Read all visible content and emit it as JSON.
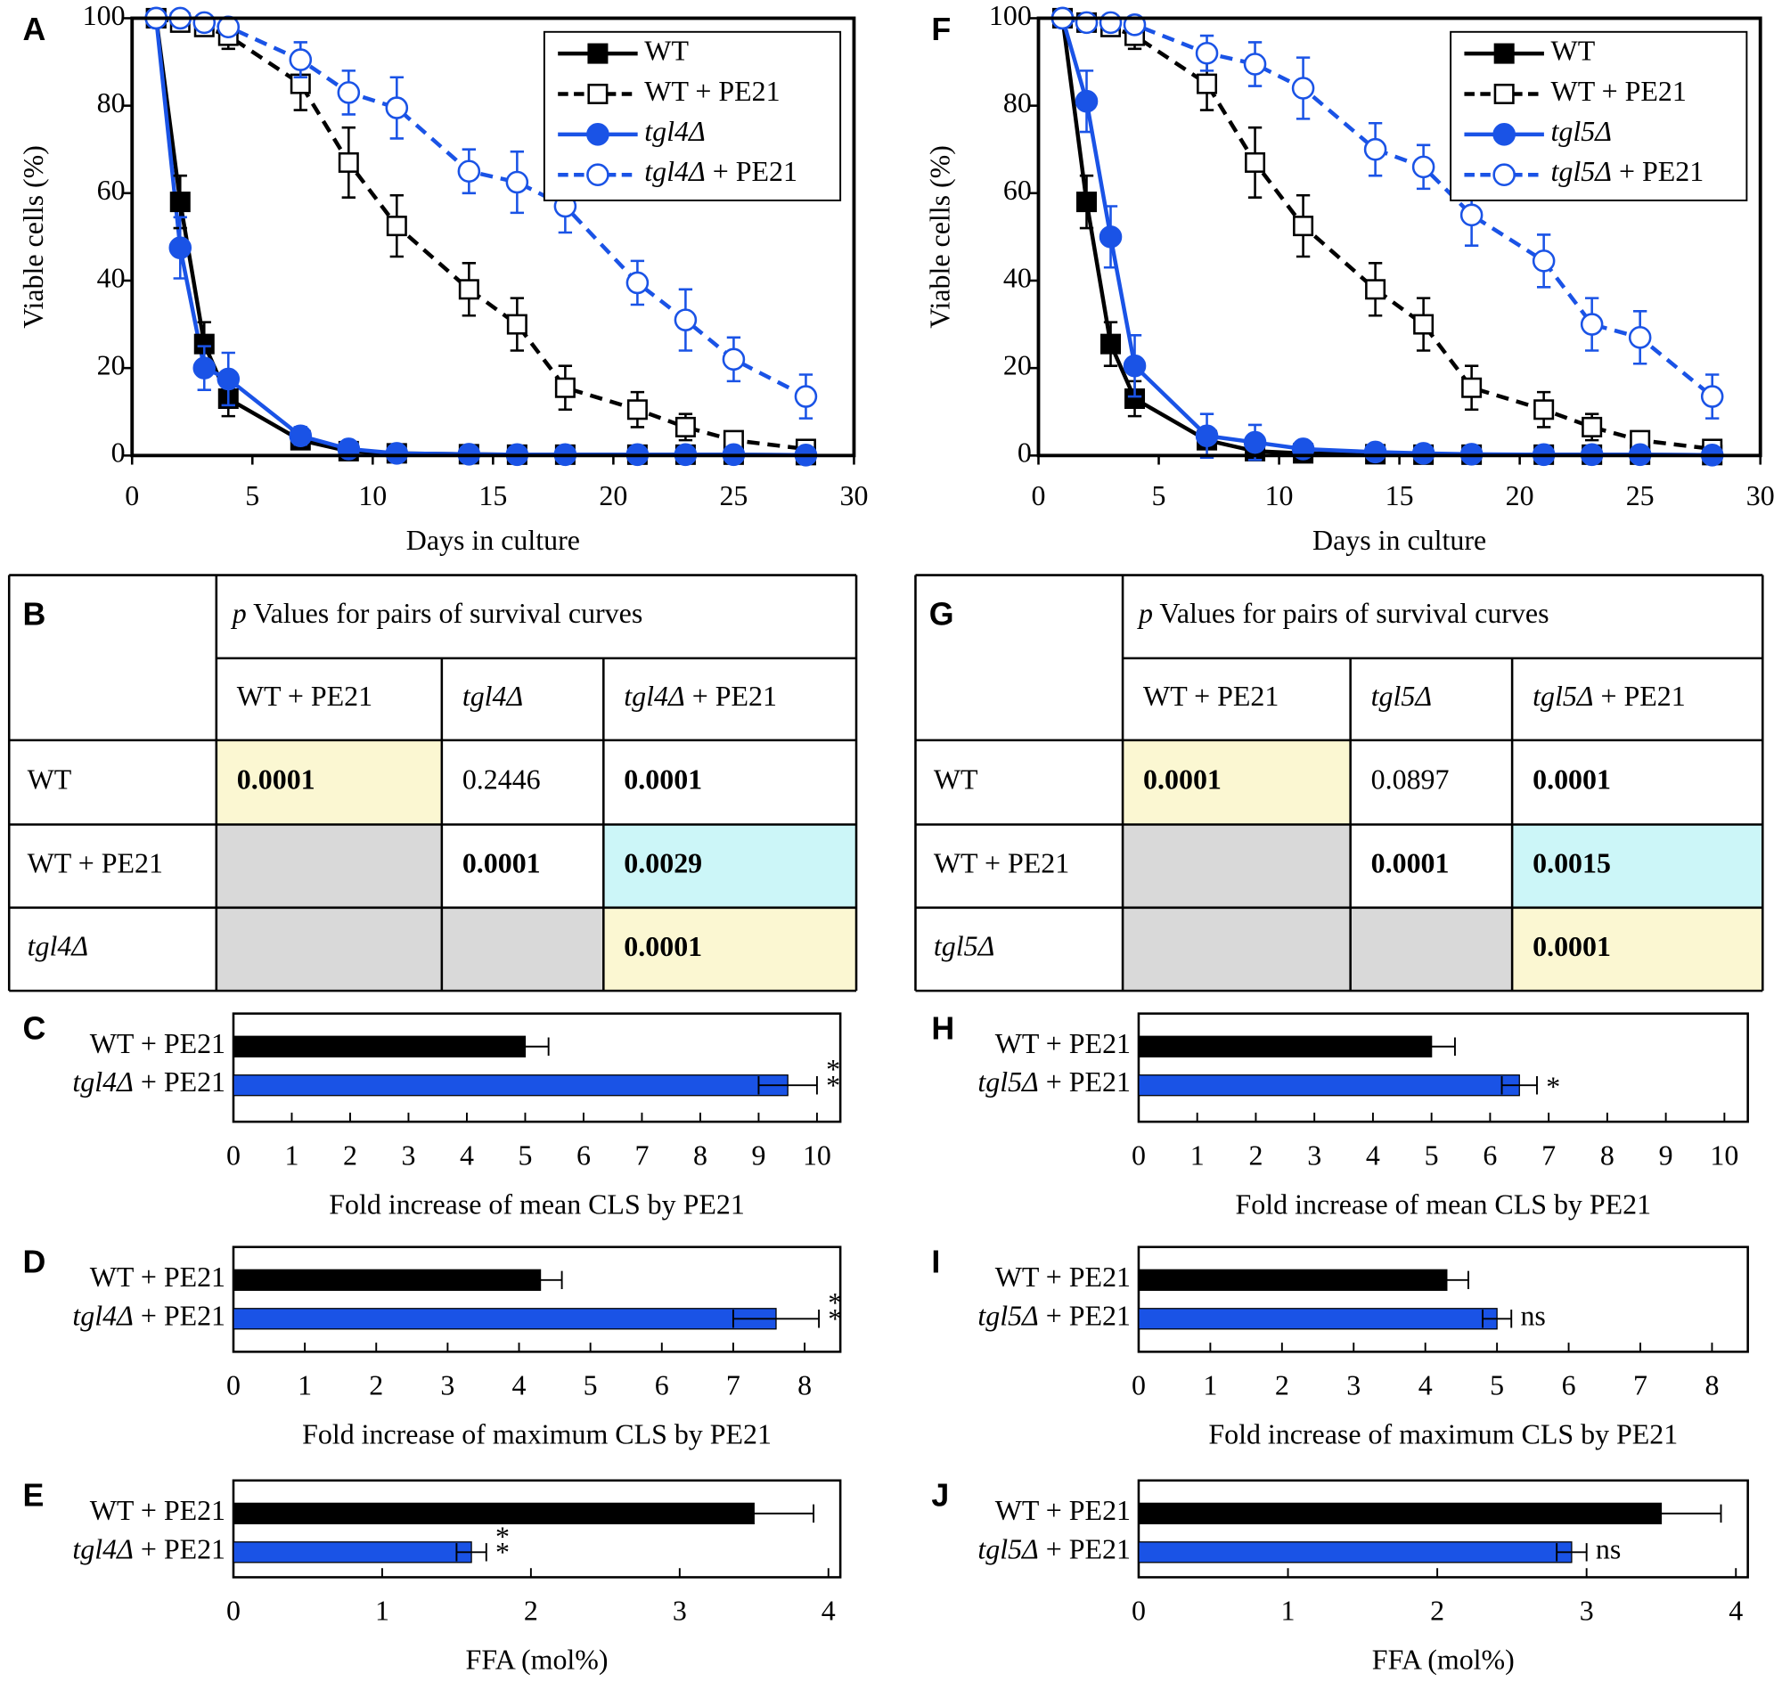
{
  "chart_data": [
    {
      "type": "line",
      "panel": "A",
      "xlabel": "Days in culture",
      "ylabel": "Viable cells (%)",
      "x": [
        1,
        2,
        3,
        4,
        7,
        9,
        11,
        14,
        16,
        18,
        21,
        23,
        25,
        28
      ],
      "xlim": [
        0,
        30
      ],
      "xticks": [
        0,
        5,
        10,
        15,
        20,
        25,
        30
      ],
      "ylim": [
        0,
        100
      ],
      "yticks": [
        0,
        20,
        40,
        60,
        80,
        100
      ],
      "legend": "upper right",
      "series": [
        {
          "name": "WT",
          "color": "#000000",
          "marker": "square",
          "filled": true,
          "dashed": false,
          "values": [
            100,
            58,
            25.5,
            13,
            3.5,
            1,
            0.5,
            0.3,
            0.2,
            0.2,
            0.2,
            0.2,
            0.2,
            0.1
          ],
          "errors": [
            0,
            6,
            5,
            4,
            1.5,
            1,
            0.5,
            0,
            0,
            0,
            0,
            0,
            0,
            0
          ]
        },
        {
          "name": "WT + PE21",
          "color": "#000000",
          "marker": "square",
          "filled": false,
          "dashed": true,
          "values": [
            100,
            99,
            98,
            96,
            85,
            67,
            52.5,
            38,
            30,
            15.5,
            10.5,
            6.5,
            3.5,
            1.5
          ],
          "errors": [
            0,
            1,
            2,
            3,
            6,
            8,
            7,
            6,
            6,
            5,
            4,
            3,
            1,
            1
          ]
        },
        {
          "name": "tgl4Δ",
          "color": "#1a53e6",
          "marker": "circle",
          "filled": true,
          "dashed": false,
          "values": [
            100,
            47.5,
            20,
            17.5,
            4.5,
            1.5,
            0.5,
            0.3,
            0.2,
            0.2,
            0.2,
            0.2,
            0.2,
            0.1
          ],
          "errors": [
            0,
            7,
            5,
            6,
            2,
            1,
            0.5,
            0,
            0,
            0,
            0,
            0,
            0,
            0
          ]
        },
        {
          "name": "tgl4Δ + PE21",
          "color": "#1a53e6",
          "marker": "circle",
          "filled": false,
          "dashed": true,
          "values": [
            100,
            100,
            99,
            98,
            90.5,
            83,
            79.5,
            65,
            62.5,
            57,
            39.5,
            31,
            22,
            13.5
          ],
          "errors": [
            0,
            1,
            1,
            1,
            4,
            5,
            7,
            5,
            7,
            6,
            5,
            7,
            5,
            5
          ]
        }
      ]
    },
    {
      "type": "line",
      "panel": "F",
      "xlabel": "Days in culture",
      "ylabel": "Viable cells (%)",
      "x": [
        1,
        2,
        3,
        4,
        7,
        9,
        11,
        14,
        16,
        18,
        21,
        23,
        25,
        28
      ],
      "xlim": [
        0,
        30
      ],
      "xticks": [
        0,
        5,
        10,
        15,
        20,
        25,
        30
      ],
      "ylim": [
        0,
        100
      ],
      "yticks": [
        0,
        20,
        40,
        60,
        80,
        100
      ],
      "legend": "upper right",
      "series": [
        {
          "name": "WT",
          "color": "#000000",
          "marker": "square",
          "filled": true,
          "dashed": false,
          "values": [
            100,
            58,
            25.5,
            13,
            3.5,
            1,
            0.5,
            0.3,
            0.2,
            0.2,
            0.2,
            0.2,
            0.2,
            0.1
          ],
          "errors": [
            0,
            6,
            5,
            4,
            1.5,
            1,
            0.5,
            0,
            0,
            0,
            0,
            0,
            0,
            0
          ]
        },
        {
          "name": "WT + PE21",
          "color": "#000000",
          "marker": "square",
          "filled": false,
          "dashed": true,
          "values": [
            100,
            99,
            98,
            96,
            85,
            67,
            52.5,
            38,
            30,
            15.5,
            10.5,
            6.5,
            3.5,
            1.5
          ],
          "errors": [
            0,
            1,
            2,
            3,
            6,
            8,
            7,
            6,
            6,
            5,
            4,
            3,
            1,
            1
          ]
        },
        {
          "name": "tgl5Δ",
          "color": "#1a53e6",
          "marker": "circle",
          "filled": true,
          "dashed": false,
          "values": [
            100,
            81,
            50,
            20.5,
            4.5,
            3,
            1.5,
            0.8,
            0.5,
            0.3,
            0.2,
            0.2,
            0.2,
            0.1
          ],
          "errors": [
            0,
            7,
            7,
            7,
            5,
            4,
            1,
            0.5,
            0,
            0,
            0,
            0,
            0,
            0
          ]
        },
        {
          "name": "tgl5Δ + PE21",
          "color": "#1a53e6",
          "marker": "circle",
          "filled": false,
          "dashed": true,
          "values": [
            100,
            99,
            99,
            98.5,
            92,
            89.5,
            84,
            70,
            66,
            55,
            44.5,
            30,
            27,
            13.5
          ],
          "errors": [
            0,
            1,
            1,
            1,
            4,
            5,
            7,
            6,
            5,
            7,
            6,
            6,
            6,
            5
          ]
        }
      ]
    },
    {
      "type": "hbar",
      "panel": "C",
      "xlabel": "Fold increase of mean CLS by PE21",
      "categories": [
        "WT + PE21",
        "tgl4Δ + PE21"
      ],
      "values": [
        5.0,
        9.5
      ],
      "errors": [
        0.4,
        0.5
      ],
      "colors": [
        "#000000",
        "#1a53e6"
      ],
      "significance": [
        null,
        "**"
      ],
      "xlim": [
        0,
        10.4
      ],
      "xticks": [
        0,
        1,
        2,
        3,
        4,
        5,
        6,
        7,
        8,
        9,
        10
      ]
    },
    {
      "type": "hbar",
      "panel": "D",
      "xlabel": "Fold increase of maximum CLS by PE21",
      "categories": [
        "WT + PE21",
        "tgl4Δ + PE21"
      ],
      "values": [
        4.3,
        7.6
      ],
      "errors": [
        0.3,
        0.6
      ],
      "colors": [
        "#000000",
        "#1a53e6"
      ],
      "significance": [
        null,
        "**"
      ],
      "xlim": [
        0,
        8.5
      ],
      "xticks": [
        0,
        1,
        2,
        3,
        4,
        5,
        6,
        7,
        8
      ]
    },
    {
      "type": "hbar",
      "panel": "E",
      "xlabel": "FFA (mol%)",
      "categories": [
        "WT + PE21",
        "tgl4Δ + PE21"
      ],
      "values": [
        3.5,
        1.6
      ],
      "errors": [
        0.4,
        0.1
      ],
      "colors": [
        "#000000",
        "#1a53e6"
      ],
      "significance": [
        null,
        "**"
      ],
      "xlim": [
        0,
        4.08
      ],
      "xticks": [
        0,
        1,
        2,
        3,
        4
      ]
    },
    {
      "type": "hbar",
      "panel": "H",
      "xlabel": "Fold increase of mean CLS by PE21",
      "categories": [
        "WT + PE21",
        "tgl5Δ + PE21"
      ],
      "values": [
        5.0,
        6.5
      ],
      "errors": [
        0.4,
        0.3
      ],
      "colors": [
        "#000000",
        "#1a53e6"
      ],
      "significance": [
        null,
        "*"
      ],
      "xlim": [
        0,
        10.4
      ],
      "xticks": [
        0,
        1,
        2,
        3,
        4,
        5,
        6,
        7,
        8,
        9,
        10
      ]
    },
    {
      "type": "hbar",
      "panel": "I",
      "xlabel": "Fold increase of maximum CLS by PE21",
      "categories": [
        "WT + PE21",
        "tgl5Δ + PE21"
      ],
      "values": [
        4.3,
        5.0
      ],
      "errors": [
        0.3,
        0.2
      ],
      "colors": [
        "#000000",
        "#1a53e6"
      ],
      "significance": [
        null,
        "ns"
      ],
      "xlim": [
        0,
        8.5
      ],
      "xticks": [
        0,
        1,
        2,
        3,
        4,
        5,
        6,
        7,
        8
      ]
    },
    {
      "type": "hbar",
      "panel": "J",
      "xlabel": "FFA (mol%)",
      "categories": [
        "WT + PE21",
        "tgl5Δ + PE21"
      ],
      "values": [
        3.5,
        2.9
      ],
      "errors": [
        0.4,
        0.1
      ],
      "colors": [
        "#000000",
        "#1a53e6"
      ],
      "significance": [
        null,
        "ns"
      ],
      "xlim": [
        0,
        4.08
      ],
      "xticks": [
        0,
        1,
        2,
        3,
        4
      ]
    }
  ],
  "tables": [
    {
      "panel": "B",
      "title": "p Values for pairs of survival curves",
      "columns": [
        "WT + PE21",
        "tgl4Δ",
        "tgl4Δ + PE21"
      ],
      "rows": [
        {
          "label": "WT",
          "cells": [
            {
              "text": "0.0001",
              "color": "#e8141c",
              "fill": "#fbf7d2"
            },
            {
              "text": "0.2446",
              "color": "#000000",
              "fill": "#ffffff"
            },
            {
              "text": "0.0001",
              "color": "#e8141c",
              "fill": "#ffffff"
            }
          ]
        },
        {
          "label": "WT + PE21",
          "cells": [
            {
              "fill": "#d9d9d9"
            },
            {
              "text": "0.0001",
              "color": "#e8141c",
              "fill": "#ffffff"
            },
            {
              "text": "0.0029",
              "color": "#e8141c",
              "fill": "#ccf6f8"
            }
          ]
        },
        {
          "label": "tgl4Δ",
          "cells": [
            {
              "fill": "#d9d9d9"
            },
            {
              "fill": "#d9d9d9"
            },
            {
              "text": "0.0001",
              "color": "#e8141c",
              "fill": "#fbf7d2"
            }
          ]
        }
      ]
    },
    {
      "panel": "G",
      "title": "p Values for pairs of survival curves",
      "columns": [
        "WT + PE21",
        "tgl5Δ",
        "tgl5Δ + PE21"
      ],
      "rows": [
        {
          "label": "WT",
          "cells": [
            {
              "text": "0.0001",
              "color": "#e8141c",
              "fill": "#fbf7d2"
            },
            {
              "text": "0.0897",
              "color": "#000000",
              "fill": "#ffffff"
            },
            {
              "text": "0.0001",
              "color": "#e8141c",
              "fill": "#ffffff"
            }
          ]
        },
        {
          "label": "WT + PE21",
          "cells": [
            {
              "fill": "#d9d9d9"
            },
            {
              "text": "0.0001",
              "color": "#e8141c",
              "fill": "#ffffff"
            },
            {
              "text": "0.0015",
              "color": "#e8141c",
              "fill": "#ccf6f8"
            }
          ]
        },
        {
          "label": "tgl5Δ",
          "cells": [
            {
              "fill": "#d9d9d9"
            },
            {
              "fill": "#d9d9d9"
            },
            {
              "text": "0.0001",
              "color": "#e8141c",
              "fill": "#fbf7d2"
            }
          ]
        }
      ]
    }
  ]
}
